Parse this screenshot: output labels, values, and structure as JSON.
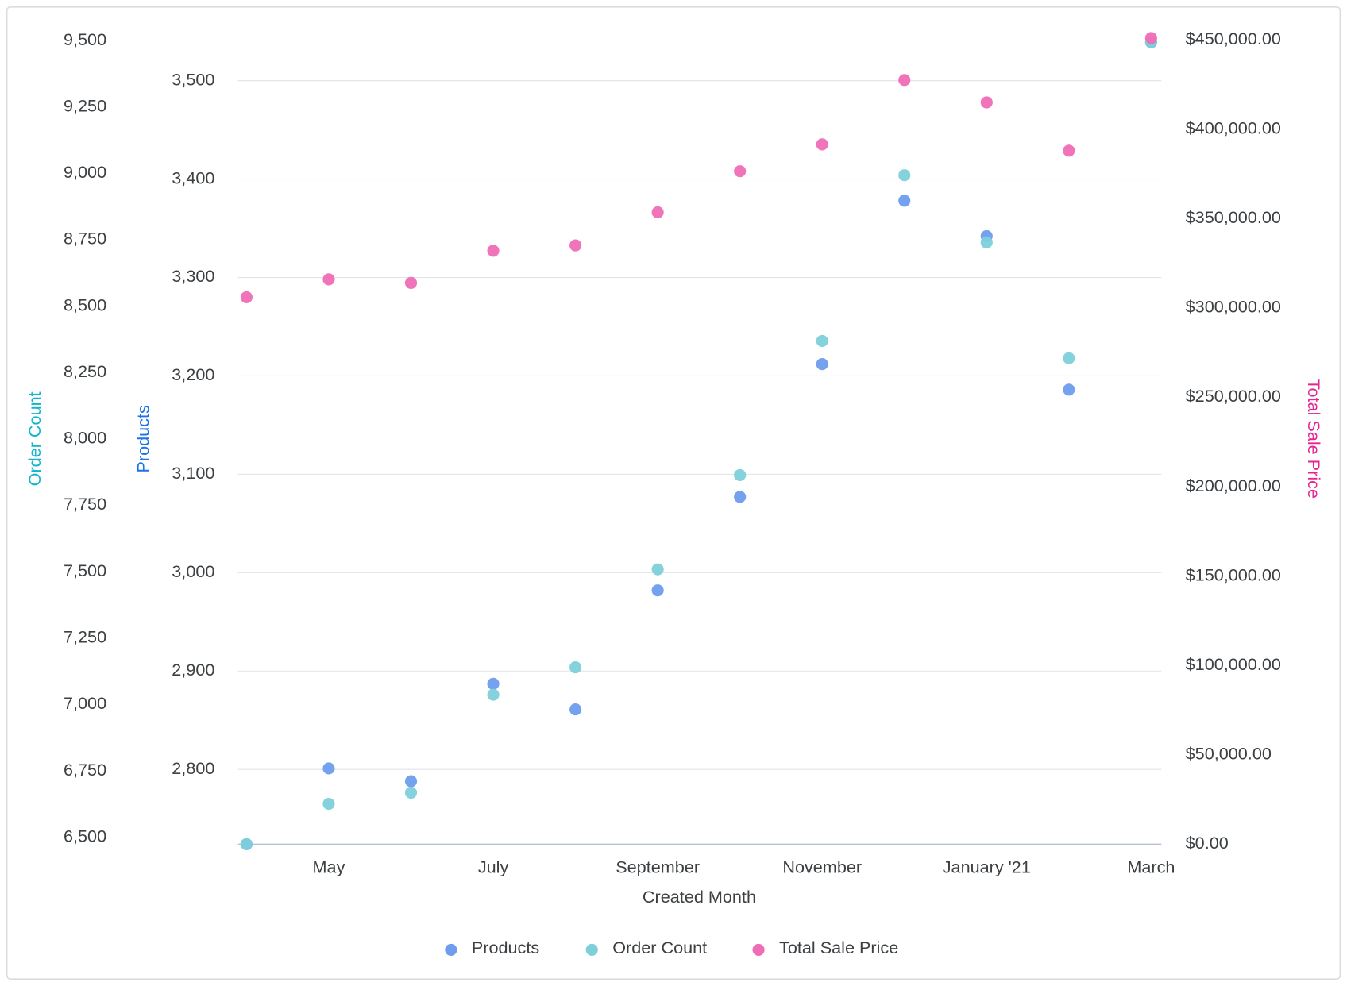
{
  "chart_data": {
    "type": "scatter",
    "xlabel": "Created Month",
    "categories": [
      null,
      "May",
      null,
      "July",
      null,
      "September",
      null,
      "November",
      null,
      "January '21",
      null,
      "March"
    ],
    "ylabel": "Products",
    "ylim": [
      2724,
      3547
    ],
    "yticks": [
      {
        "value": 2800,
        "label": "2,800"
      },
      {
        "value": 2900,
        "label": "2,900"
      },
      {
        "value": 3000,
        "label": "3,000"
      },
      {
        "value": 3100,
        "label": "3,100"
      },
      {
        "value": 3200,
        "label": "3,200"
      },
      {
        "value": 3300,
        "label": "3,300"
      },
      {
        "value": 3400,
        "label": "3,400"
      },
      {
        "value": 3500,
        "label": "3,500"
      }
    ],
    "y3label": "Order Count",
    "y3lim": [
      6474,
      9523
    ],
    "y3ticks": [
      {
        "value": 6500,
        "label": "6,500"
      },
      {
        "value": 6750,
        "label": "6,750"
      },
      {
        "value": 7000,
        "label": "7,000"
      },
      {
        "value": 7250,
        "label": "7,250"
      },
      {
        "value": 7500,
        "label": "7,500"
      },
      {
        "value": 7750,
        "label": "7,750"
      },
      {
        "value": 8000,
        "label": "8,000"
      },
      {
        "value": 8250,
        "label": "8,250"
      },
      {
        "value": 8500,
        "label": "8,500"
      },
      {
        "value": 8750,
        "label": "8,750"
      },
      {
        "value": 9000,
        "label": "9,000"
      },
      {
        "value": 9250,
        "label": "9,250"
      },
      {
        "value": 9500,
        "label": "9,500"
      }
    ],
    "y2label": "Total Sale Price",
    "y2lim": [
      0,
      453000
    ],
    "y2ticks": [
      {
        "value": 0,
        "label": "$0.00"
      },
      {
        "value": 50000,
        "label": "$50,000.00"
      },
      {
        "value": 100000,
        "label": "$100,000.00"
      },
      {
        "value": 150000,
        "label": "$150,000.00"
      },
      {
        "value": 200000,
        "label": "$200,000.00"
      },
      {
        "value": 250000,
        "label": "$250,000.00"
      },
      {
        "value": 300000,
        "label": "$300,000.00"
      },
      {
        "value": 350000,
        "label": "$350,000.00"
      },
      {
        "value": 400000,
        "label": "$400,000.00"
      },
      {
        "value": 450000,
        "label": "$450,000.00"
      }
    ],
    "grid": true,
    "series": [
      {
        "name": "Products",
        "color": "#6e9ded",
        "axis": "y",
        "title_color": "#1a73e8",
        "values": [
          2724,
          2801,
          2788,
          2887,
          2861,
          2982,
          3077,
          3212,
          3378,
          3342,
          3186,
          3539
        ]
      },
      {
        "name": "Order Count",
        "color": "#7dd0da",
        "axis": "y3",
        "title_color": "#12b5cb",
        "values": [
          6474,
          6626,
          6668,
          7037,
          7140,
          7509,
          7864,
          8369,
          8993,
          8740,
          8304,
          9494
        ]
      },
      {
        "name": "Total Sale Price",
        "color": "#ef6db5",
        "axis": "y2",
        "title_color": "#e52592",
        "values": [
          306000,
          316000,
          314000,
          332000,
          335000,
          353500,
          376500,
          391500,
          427500,
          415000,
          388000,
          451000
        ]
      }
    ]
  }
}
